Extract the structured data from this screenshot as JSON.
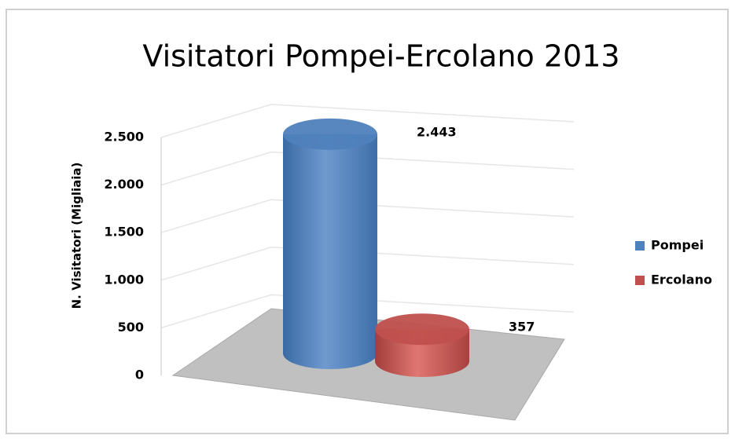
{
  "chart_data": {
    "type": "bar3d",
    "title": "Visitatori Pompei-Ercolano 2013",
    "y_axis_label": "N. Visitatori (Migliaia)",
    "series": [
      {
        "name": "Pompei",
        "color": "#4f81bd",
        "values": [
          2443
        ],
        "value_labels": [
          "2.443"
        ]
      },
      {
        "name": "Ercolano",
        "color": "#c0504d",
        "values": [
          357
        ],
        "value_labels": [
          "357"
        ]
      }
    ],
    "ylim": [
      0,
      2500
    ],
    "yticks": [
      0,
      500,
      {
        "value": 1000,
        "label": "1.000"
      },
      {
        "value": 1500,
        "label": "1.500"
      },
      {
        "value": 2000,
        "label": "2.000"
      },
      {
        "value": 2500,
        "label": "2.500"
      }
    ],
    "grid": true,
    "legend": "right"
  }
}
